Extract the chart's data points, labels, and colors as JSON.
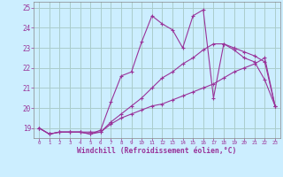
{
  "title": "",
  "xlabel": "Windchill (Refroidissement éolien,°C)",
  "ylabel": "",
  "xlim": [
    -0.5,
    23.5
  ],
  "ylim": [
    18.5,
    25.3
  ],
  "yticks": [
    19,
    20,
    21,
    22,
    23,
    24,
    25
  ],
  "xticks": [
    0,
    1,
    2,
    3,
    4,
    5,
    6,
    7,
    8,
    9,
    10,
    11,
    12,
    13,
    14,
    15,
    16,
    17,
    18,
    19,
    20,
    21,
    22,
    23
  ],
  "background_color": "#cceeff",
  "grid_color": "#aacccc",
  "line_color": "#993399",
  "line1_x": [
    0,
    1,
    2,
    3,
    4,
    5,
    6,
    7,
    8,
    9,
    10,
    11,
    12,
    13,
    14,
    15,
    16,
    17,
    18,
    19,
    20,
    21,
    22,
    23
  ],
  "line1_y": [
    19.0,
    18.7,
    18.8,
    18.8,
    18.8,
    18.7,
    18.8,
    19.2,
    19.5,
    19.7,
    19.9,
    20.1,
    20.2,
    20.4,
    20.6,
    20.8,
    21.0,
    21.2,
    21.5,
    21.8,
    22.0,
    22.2,
    22.5,
    20.1
  ],
  "line2_x": [
    0,
    1,
    2,
    3,
    4,
    5,
    6,
    7,
    8,
    9,
    10,
    11,
    12,
    13,
    14,
    15,
    16,
    17,
    18,
    19,
    20,
    21,
    22,
    23
  ],
  "line2_y": [
    19.0,
    18.7,
    18.8,
    18.8,
    18.8,
    18.7,
    18.9,
    20.3,
    21.6,
    21.8,
    23.3,
    24.6,
    24.2,
    23.9,
    23.0,
    24.6,
    24.9,
    20.5,
    23.2,
    22.9,
    22.5,
    22.3,
    21.4,
    20.1
  ],
  "line3_x": [
    0,
    1,
    2,
    3,
    4,
    5,
    6,
    7,
    8,
    9,
    10,
    11,
    12,
    13,
    14,
    15,
    16,
    17,
    18,
    19,
    20,
    21,
    22,
    23
  ],
  "line3_y": [
    19.0,
    18.7,
    18.8,
    18.8,
    18.8,
    18.8,
    18.8,
    19.3,
    19.7,
    20.1,
    20.5,
    21.0,
    21.5,
    21.8,
    22.2,
    22.5,
    22.9,
    23.2,
    23.2,
    23.0,
    22.8,
    22.6,
    22.3,
    20.1
  ],
  "marker": "+"
}
